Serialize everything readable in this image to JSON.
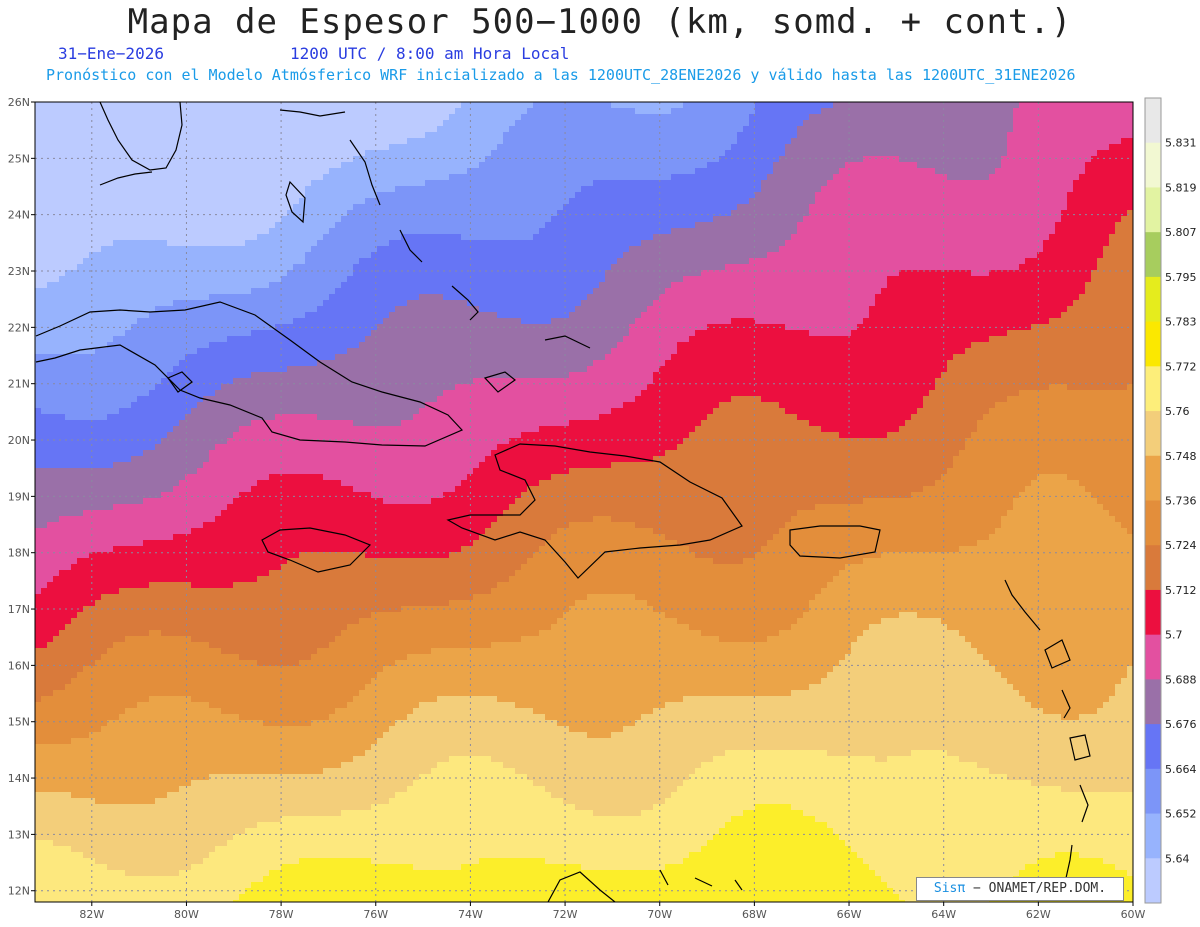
{
  "header": {
    "title": "Mapa de Espesor 500−1000 (km, somd. + cont.)",
    "date": "31−Ene−2026",
    "time": "1200 UTC / 8:00 am Hora Local",
    "subtitle": "Pronóstico con el Modelo Atmósferico WRF inicializado a las 1200UTC_28ENE2026 y válido hasta las  1200UTC_31ENE2026"
  },
  "map": {
    "extent": {
      "lon_min": -83.2,
      "lon_max": -60,
      "lat_min": 11.8,
      "lat_max": 26
    },
    "lat_labels": [
      "26N",
      "25N",
      "24N",
      "23N",
      "22N",
      "21N",
      "20N",
      "19N",
      "18N",
      "17N",
      "16N",
      "15N",
      "14N",
      "13N",
      "12N"
    ],
    "lon_labels": [
      "82W",
      "80W",
      "78W",
      "76W",
      "74W",
      "72W",
      "70W",
      "68W",
      "66W",
      "64W",
      "62W",
      "60W"
    ],
    "bands": [
      {
        "min": 5.772,
        "max": 5.783,
        "color": "#fcee2a"
      },
      {
        "min": 5.76,
        "max": 5.772,
        "color": "#fde87e"
      },
      {
        "min": 5.748,
        "max": 5.76,
        "color": "#f3ce7a"
      },
      {
        "min": 5.736,
        "max": 5.748,
        "color": "#eba448"
      },
      {
        "min": 5.724,
        "max": 5.736,
        "color": "#e38e3b"
      },
      {
        "min": 5.712,
        "max": 5.724,
        "color": "#d97a3b"
      },
      {
        "min": 5.7,
        "max": 5.712,
        "color": "#ec0f3f"
      },
      {
        "min": 5.688,
        "max": 5.7,
        "color": "#e350a0"
      },
      {
        "min": 5.676,
        "max": 5.688,
        "color": "#9a70a8"
      },
      {
        "min": 5.664,
        "max": 5.676,
        "color": "#6675f5"
      },
      {
        "min": 5.652,
        "max": 5.664,
        "color": "#7c95f8"
      },
      {
        "min": 5.64,
        "max": 5.652,
        "color": "#97b3fd"
      },
      {
        "min": 5.628,
        "max": 5.64,
        "color": "#bccbff"
      }
    ]
  },
  "colorbar": {
    "labels": [
      "5.831",
      "5.819",
      "5.807",
      "5.795",
      "5.783",
      "5.772",
      "5.76",
      "5.748",
      "5.736",
      "5.724",
      "5.712",
      "5.7",
      "5.688",
      "5.676",
      "5.664",
      "5.652",
      "5.64"
    ],
    "colors": [
      "#e8e8e8",
      "#f2f8d2",
      "#e2f3a2",
      "#a7cd5e",
      "#e5ec1d",
      "#fbe800",
      "#fdee7a",
      "#f3ce7a",
      "#eba448",
      "#e38e3b",
      "#d97a3b",
      "#ec0f3f",
      "#e350a0",
      "#9a70a8",
      "#6675f5",
      "#7c95f8",
      "#97b3fd",
      "#bccbff"
    ]
  },
  "credit": {
    "brand": "Sisπ",
    "text": " − ONAMET/REP.DOM."
  }
}
